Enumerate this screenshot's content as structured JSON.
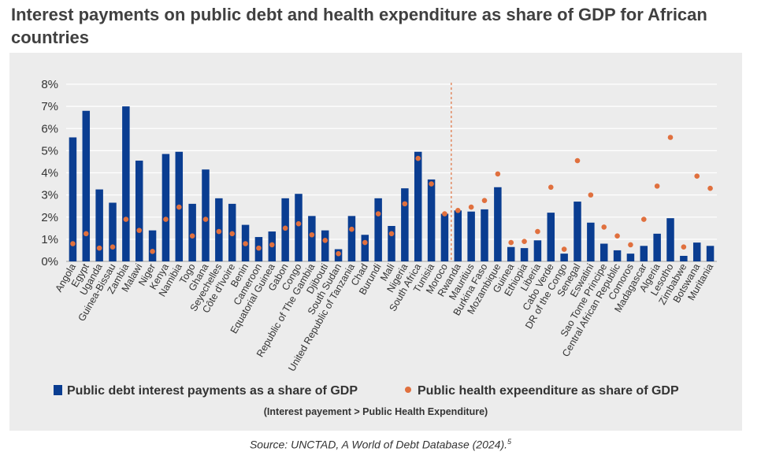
{
  "title": "Interest payments on public debt and health expenditure as share of GDP for African countries",
  "source": {
    "text": "Source: UNCTAD, A World of Debt Database (2024).",
    "footnote": "5"
  },
  "colors": {
    "bar": "#0a3d91",
    "dot": "#e0703e",
    "divider": "#e0703e",
    "panel": "#ececec",
    "grid": "#ffffff"
  },
  "chart_data": {
    "type": "bar",
    "title": "",
    "xlabel": "",
    "ylabel": "",
    "ylim": [
      0,
      8
    ],
    "yticks": [
      "0%",
      "1%",
      "2%",
      "3%",
      "4%",
      "5%",
      "6%",
      "7%",
      "8%"
    ],
    "grid": true,
    "legend_position": "bottom",
    "note": "(Interest payement > Public Health Expenditure)",
    "divider_after_index": 28,
    "categories": [
      "Angola",
      "Egypt",
      "Uganda",
      "Guinea-Bissau",
      "Zambia",
      "Malawi",
      "Niger",
      "Kenya",
      "Namibia",
      "Togo",
      "Ghana",
      "Seyechelles",
      "Côte d'Ivoire",
      "Benin",
      "Cameroon",
      "Equatorial Guinea",
      "Gabon",
      "Congo",
      "Republic of The Gambia",
      "Djibouti",
      "South Sudan",
      "United Republic of Tanzania",
      "Chad",
      "Burundi",
      "Mali",
      "Nigeria",
      "South Africa",
      "Tunisia",
      "Moroco",
      "Rwanda",
      "Mauritius",
      "Burkina Faso",
      "Mozambique",
      "Guinea",
      "Ethiopia",
      "Liberia",
      "Cabo Verde",
      "DR of the Congo",
      "Senegal",
      "Eswatini",
      "Sao Tome Principe",
      "Central African Republic",
      "Comoros",
      "Madagascar",
      "Algeria",
      "Lesotho",
      "Zimbabwe",
      "Botswana",
      "Muritania"
    ],
    "series": [
      {
        "name": "Public debt interest payments as a share of GDP",
        "kind": "bar",
        "values": [
          5.6,
          6.8,
          3.25,
          2.65,
          7.0,
          4.55,
          1.4,
          4.85,
          4.95,
          2.6,
          4.15,
          2.85,
          2.6,
          1.65,
          1.1,
          1.35,
          2.85,
          3.05,
          2.05,
          1.4,
          0.55,
          2.05,
          1.2,
          2.85,
          1.6,
          3.3,
          4.95,
          3.7,
          2.15,
          2.3,
          2.25,
          2.35,
          3.35,
          0.65,
          0.6,
          0.95,
          2.2,
          0.35,
          2.7,
          1.75,
          0.8,
          0.5,
          0.35,
          0.7,
          1.25,
          1.95,
          0.25,
          0.85,
          0.7
        ]
      },
      {
        "name": "Public health expeenditure as share of GDP",
        "kind": "dot",
        "values": [
          0.8,
          1.25,
          0.6,
          0.65,
          1.9,
          1.4,
          0.45,
          1.9,
          2.45,
          1.15,
          1.9,
          1.35,
          1.25,
          0.8,
          0.6,
          0.75,
          1.5,
          1.7,
          1.2,
          0.95,
          0.35,
          1.45,
          0.85,
          2.15,
          1.25,
          2.6,
          4.65,
          3.5,
          2.15,
          2.3,
          2.45,
          2.75,
          3.95,
          0.85,
          0.9,
          1.35,
          3.35,
          0.55,
          4.55,
          3.0,
          1.55,
          1.15,
          0.75,
          1.9,
          3.4,
          5.6,
          0.65,
          3.85,
          3.3
        ]
      }
    ]
  }
}
